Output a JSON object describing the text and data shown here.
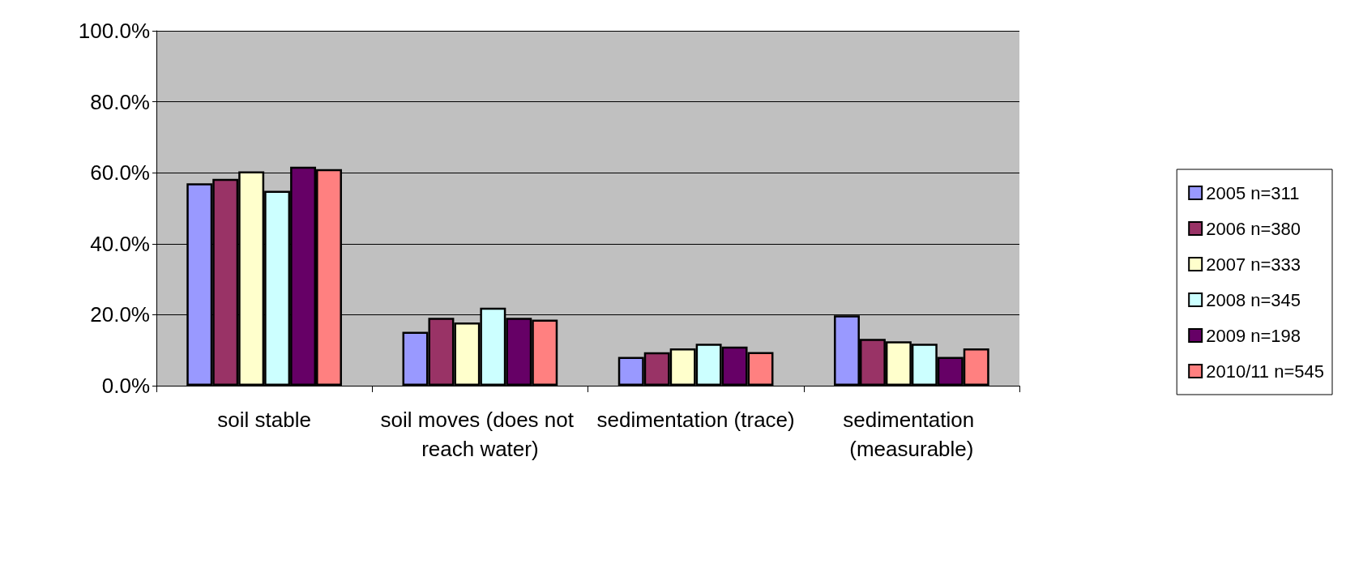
{
  "chart_data": {
    "type": "bar",
    "categories": [
      "soil stable",
      "soil moves (does not reach water)",
      "sedimentation (trace)",
      "sedimentation (measurable)"
    ],
    "series": [
      {
        "name": "2005 n=311",
        "color": "#9999ff",
        "values": [
          57.0,
          15.2,
          8.1,
          19.8
        ]
      },
      {
        "name": "2006 n=380",
        "color": "#993366",
        "values": [
          58.3,
          19.1,
          9.4,
          13.2
        ]
      },
      {
        "name": "2007 n=333",
        "color": "#ffffcc",
        "values": [
          60.4,
          17.8,
          10.5,
          12.5
        ]
      },
      {
        "name": "2008 n=345",
        "color": "#ccffff",
        "values": [
          54.9,
          22.0,
          11.8,
          11.8
        ]
      },
      {
        "name": "2009 n=198",
        "color": "#660066",
        "values": [
          61.7,
          19.1,
          11.0,
          8.1
        ]
      },
      {
        "name": "2010/11 n=545",
        "color": "#ff8080",
        "values": [
          61.0,
          18.6,
          9.5,
          10.5
        ]
      }
    ],
    "ylim": [
      0,
      100
    ],
    "yticks": [
      {
        "value": 0,
        "label": "0.0%"
      },
      {
        "value": 20,
        "label": "20.0%"
      },
      {
        "value": 40,
        "label": "40.0%"
      },
      {
        "value": 60,
        "label": "60.0%"
      },
      {
        "value": 80,
        "label": "80.0%"
      },
      {
        "value": 100,
        "label": "100.0%"
      }
    ],
    "grid": "y",
    "legend": "right"
  }
}
